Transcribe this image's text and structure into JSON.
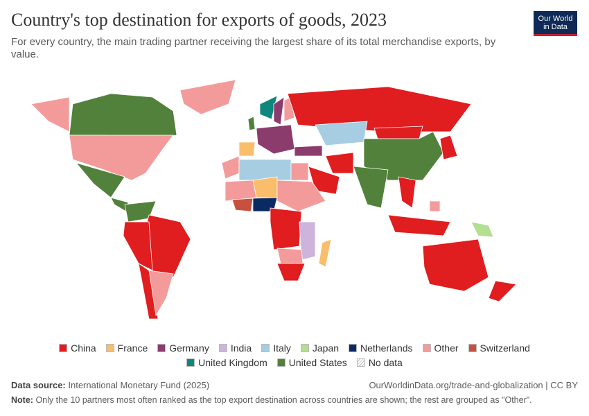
{
  "header": {
    "title": "Country's top destination for exports of goods, 2023",
    "subtitle": "For every country, the main trading partner receiving the largest share of its total merchandise exports, by value.",
    "logo": [
      "Our World",
      "in Data"
    ]
  },
  "legend": [
    {
      "name": "China",
      "color": "#e01d1f"
    },
    {
      "name": "France",
      "color": "#f9bd6c"
    },
    {
      "name": "Germany",
      "color": "#8c3b6d"
    },
    {
      "name": "India",
      "color": "#cdb4dc"
    },
    {
      "name": "Italy",
      "color": "#a7cde3"
    },
    {
      "name": "Japan",
      "color": "#b3df90"
    },
    {
      "name": "Netherlands",
      "color": "#0b2a62"
    },
    {
      "name": "Other",
      "color": "#f39b9b"
    },
    {
      "name": "Switzerland",
      "color": "#c8503f"
    },
    {
      "name": "United Kingdom",
      "color": "#0e887d"
    },
    {
      "name": "United States",
      "color": "#52813b"
    },
    {
      "name": "No data",
      "color": "#ffffff"
    }
  ],
  "footer": {
    "source_label": "Data source:",
    "source": "International Monetary Fund (2025)",
    "url": "OurWorldinData.org/trade-and-globalization | CC BY",
    "note_label": "Note:",
    "note": "Only the 10 partners most often ranked as the top export destination across countries are shown; the rest are grouped as \"Other\"."
  }
}
